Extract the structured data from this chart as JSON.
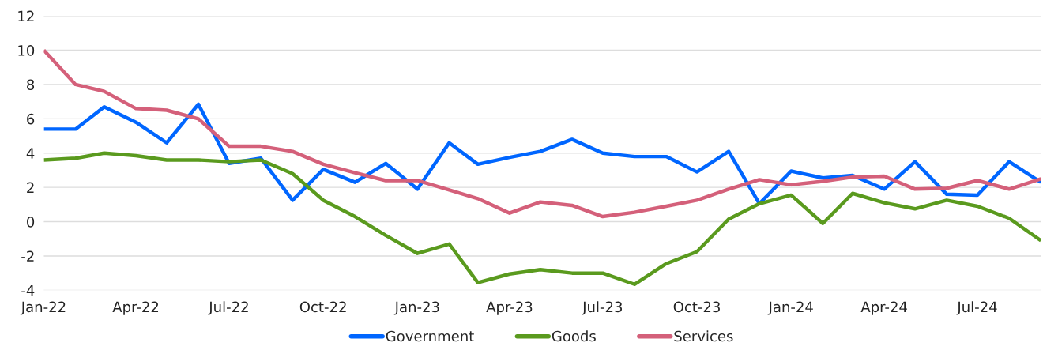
{
  "chart_data": {
    "type": "line",
    "x": [
      "2022-01",
      "2022-02",
      "2022-03",
      "2022-04",
      "2022-05",
      "2022-06",
      "2022-07",
      "2022-08",
      "2022-09",
      "2022-10",
      "2022-11",
      "2022-12",
      "2023-01",
      "2023-02",
      "2023-03",
      "2023-04",
      "2023-05",
      "2023-06",
      "2023-07",
      "2023-08",
      "2023-09",
      "2023-10",
      "2023-11",
      "2023-12",
      "2024-01",
      "2024-02",
      "2024-03",
      "2024-04",
      "2024-05",
      "2024-06",
      "2024-07",
      "2024-08",
      "2024-09"
    ],
    "series": [
      {
        "name": "Government",
        "color": "#0066ff",
        "values": [
          5.4,
          5.4,
          6.7,
          5.8,
          4.6,
          6.85,
          3.4,
          3.7,
          1.25,
          3.05,
          2.3,
          3.4,
          1.9,
          4.6,
          3.35,
          3.75,
          4.1,
          4.8,
          4.0,
          3.8,
          3.8,
          2.9,
          4.1,
          1.05,
          2.95,
          2.55,
          2.7,
          1.9,
          3.5,
          1.6,
          1.55,
          3.5,
          2.3
        ]
      },
      {
        "name": "Goods",
        "color": "#5a9a1e",
        "values": [
          3.6,
          3.7,
          4.0,
          3.85,
          3.6,
          3.6,
          3.5,
          3.6,
          2.8,
          1.25,
          0.3,
          -0.8,
          -1.85,
          -1.3,
          -3.55,
          -3.05,
          -2.8,
          -3.0,
          -3.0,
          -3.65,
          -2.45,
          -1.75,
          0.15,
          1.05,
          1.55,
          -0.1,
          1.65,
          1.1,
          0.75,
          1.25,
          0.9,
          0.2,
          -1.1
        ]
      },
      {
        "name": "Services",
        "color": "#d4607a",
        "values": [
          10.0,
          8.0,
          7.6,
          6.6,
          6.5,
          6.0,
          4.4,
          4.4,
          4.1,
          3.35,
          2.85,
          2.4,
          2.4,
          1.85,
          1.35,
          0.5,
          1.15,
          0.95,
          0.3,
          0.55,
          0.9,
          1.25,
          1.9,
          2.45,
          2.15,
          2.35,
          2.6,
          2.65,
          1.9,
          1.95,
          2.4,
          1.9,
          2.5
        ]
      }
    ],
    "xlim": [
      "2022-01",
      "2024-09"
    ],
    "xticks": [
      {
        "value": "2022-01",
        "label": "Jan-22"
      },
      {
        "value": "2022-04",
        "label": "Apr-22"
      },
      {
        "value": "2022-07",
        "label": "Jul-22"
      },
      {
        "value": "2022-10",
        "label": "Oct-22"
      },
      {
        "value": "2023-01",
        "label": "Jan-23"
      },
      {
        "value": "2023-04",
        "label": "Apr-23"
      },
      {
        "value": "2023-07",
        "label": "Jul-23"
      },
      {
        "value": "2023-10",
        "label": "Oct-23"
      },
      {
        "value": "2024-01",
        "label": "Jan-24"
      },
      {
        "value": "2024-04",
        "label": "Apr-24"
      },
      {
        "value": "2024-07",
        "label": "Jul-24"
      }
    ],
    "ylim": [
      -4,
      12
    ],
    "yticks": [
      -4,
      -2,
      0,
      2,
      4,
      6,
      8,
      10,
      12
    ],
    "grid": "y",
    "legend": "bottom",
    "marker": "none",
    "line_style": "solid"
  }
}
